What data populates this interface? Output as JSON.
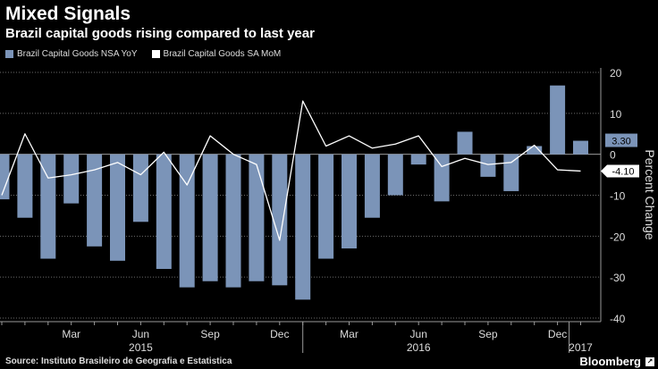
{
  "header": {
    "title": "Mixed Signals",
    "subtitle": "Brazil capital goods rising compared to last year"
  },
  "footer": {
    "source": "Source: Instituto Brasileiro de Geografia e Estatistica",
    "brand": "Bloomberg"
  },
  "colors": {
    "bar": "#7b94b8",
    "line": "#ffffff",
    "background": "#000000",
    "grid": "#6b6b6b",
    "text": "#cccccc"
  },
  "chart_data": {
    "type": "bar+line",
    "title": "Mixed Signals",
    "subtitle": "Brazil capital goods rising compared to last year",
    "ylabel": "Percent Change",
    "ylim": [
      -40,
      20
    ],
    "yticks": [
      20,
      10,
      0,
      -10,
      -20,
      -30,
      -40
    ],
    "ytick_labels": [
      "20",
      "10",
      "0",
      "-10",
      "-20",
      "-30",
      "-40"
    ],
    "grid": true,
    "legend_position": "top-left",
    "categories": [
      "Dec 2014",
      "Jan 2015",
      "Feb 2015",
      "Mar 2015",
      "Apr 2015",
      "May 2015",
      "Jun 2015",
      "Jul 2015",
      "Aug 2015",
      "Sep 2015",
      "Oct 2015",
      "Nov 2015",
      "Dec 2015",
      "Jan 2016",
      "Feb 2016",
      "Mar 2016",
      "Apr 2016",
      "May 2016",
      "Jun 2016",
      "Jul 2016",
      "Aug 2016",
      "Sep 2016",
      "Oct 2016",
      "Nov 2016",
      "Dec 2016",
      "Jan 2017"
    ],
    "x_tick_labels": [
      {
        "label": "Mar",
        "index": 3
      },
      {
        "label": "Jun",
        "index": 6
      },
      {
        "label": "Sep",
        "index": 9
      },
      {
        "label": "Dec",
        "index": 12
      },
      {
        "label": "Mar",
        "index": 15
      },
      {
        "label": "Jun",
        "index": 18
      },
      {
        "label": "Sep",
        "index": 21
      },
      {
        "label": "Dec",
        "index": 24
      }
    ],
    "year_labels": [
      {
        "label": "2015",
        "index": 6
      },
      {
        "label": "2016",
        "index": 18
      },
      {
        "label": "2017",
        "index": 25
      }
    ],
    "series": [
      {
        "name": "Brazil Capital Goods NSA YoY",
        "type": "bar",
        "values": [
          -11,
          -15.5,
          -25.5,
          -12,
          -22.5,
          -26,
          -16.5,
          -28,
          -32.5,
          -31,
          -32.5,
          -31,
          -32,
          -35.5,
          -25.5,
          -23,
          -15.5,
          -10,
          -2.5,
          -11.5,
          5.5,
          -5.5,
          -9,
          2,
          16.8,
          3.3
        ],
        "last_value_label": "3.30"
      },
      {
        "name": "Brazil Capital Goods SA MoM",
        "type": "line",
        "values": [
          -10,
          5,
          -5.8,
          -5,
          -3.8,
          -2,
          -5,
          0.5,
          -7.5,
          4.5,
          0,
          -2.5,
          -21,
          13,
          2,
          4.5,
          1.5,
          2.5,
          4.5,
          -3,
          -1,
          -2.5,
          -2,
          2.2,
          -3.8,
          -4.1
        ],
        "last_value_label": "-4.10"
      }
    ]
  }
}
